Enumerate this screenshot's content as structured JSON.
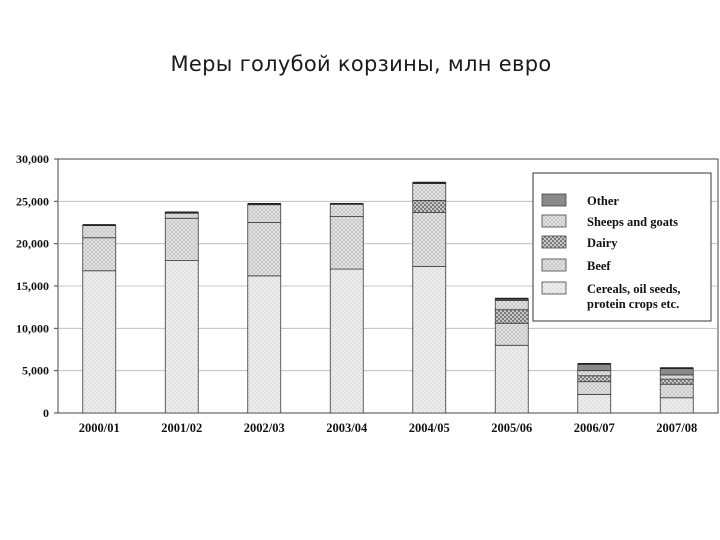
{
  "slide": {
    "title": "Меры голубой корзины, млн евро"
  },
  "chart_data": {
    "type": "bar",
    "stacked": true,
    "categories": [
      "2000/01",
      "2001/02",
      "2002/03",
      "2003/04",
      "2004/05",
      "2005/06",
      "2006/07",
      "2007/08"
    ],
    "ylim": [
      0,
      30000
    ],
    "yticks": [
      0,
      5000,
      10000,
      15000,
      20000,
      25000,
      30000
    ],
    "ytick_labels": [
      "0",
      "5,000",
      "10,000",
      "15,000",
      "20,000",
      "25,000",
      "30,000"
    ],
    "grid": true,
    "legend_position": "top-right",
    "series": [
      {
        "name": "Cereals, oil seeds, protein crops etc.",
        "color": "#ececec",
        "pattern": "dots",
        "values": [
          16800,
          18000,
          16200,
          17000,
          17300,
          8000,
          2200,
          1800
        ]
      },
      {
        "name": "Beef",
        "color": "#e2e2e2",
        "pattern": "crosshatch",
        "values": [
          3900,
          5000,
          6300,
          6200,
          6400,
          2600,
          1500,
          1600
        ]
      },
      {
        "name": "Dairy",
        "color": "#9a9a9a",
        "pattern": "check",
        "values": [
          0,
          0,
          0,
          0,
          1400,
          1600,
          700,
          600
        ]
      },
      {
        "name": "Sheeps and goats",
        "color": "#d6d6d6",
        "pattern": "crosshatch",
        "values": [
          1500,
          600,
          2100,
          1500,
          2000,
          1100,
          600,
          500
        ]
      },
      {
        "name": "Other",
        "color": "#8a8a8a",
        "pattern": "solid",
        "values": [
          0,
          100,
          100,
          0,
          100,
          200,
          800,
          800
        ]
      }
    ],
    "legend_order": [
      "Other",
      "Sheeps and goats",
      "Dairy",
      "Beef",
      "Cereals, oil seeds, protein crops etc."
    ]
  }
}
